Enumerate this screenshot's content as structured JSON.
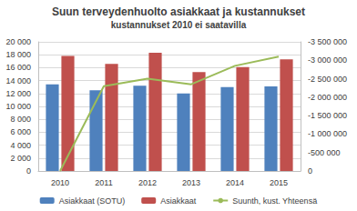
{
  "chart_data": {
    "type": "bar",
    "title": "Suun terveydenhuolto asiakkaat ja kustannukset",
    "subtitle": "kustannukset 2010 ei saatavilla",
    "categories": [
      "2010",
      "2011",
      "2012",
      "2013",
      "2014",
      "2015"
    ],
    "series": [
      {
        "name": "Asiakkaat (SOTU)",
        "type": "bar",
        "color": "#4f81bd",
        "values": [
          13400,
          12500,
          13200,
          12000,
          13000,
          13100
        ]
      },
      {
        "name": "Asiakkaat",
        "type": "bar",
        "color": "#c0504d",
        "values": [
          17800,
          16600,
          18300,
          15300,
          16100,
          17300
        ]
      },
      {
        "name": "Suunth, kust. Yhteensä",
        "type": "line",
        "axis": "y2",
        "color": "#9bbb59",
        "values": [
          0,
          -2300000,
          -2500000,
          -2350000,
          -2850000,
          -3100000
        ]
      }
    ],
    "ylim": [
      0,
      20000
    ],
    "yticks": [
      0,
      {
        "value": 2000,
        "label": "2 000"
      },
      {
        "value": 4000,
        "label": "4 000"
      },
      {
        "value": 6000,
        "label": "6 000"
      },
      {
        "value": 8000,
        "label": "8 000"
      },
      {
        "value": 10000,
        "label": "10 000"
      },
      {
        "value": 12000,
        "label": "12 000"
      },
      {
        "value": 14000,
        "label": "14 000"
      },
      {
        "value": 16000,
        "label": "16 000"
      },
      {
        "value": 18000,
        "label": "18 000"
      },
      {
        "value": 20000,
        "label": "20 000"
      }
    ],
    "y2lim": [
      0,
      -3500000
    ],
    "y2ticks": [
      0,
      {
        "value": -500000,
        "label": "-500 000"
      },
      {
        "value": -1000000,
        "label": "-1 000 000"
      },
      {
        "value": -1500000,
        "label": "-1 500 000"
      },
      {
        "value": -2000000,
        "label": "-2 000 000"
      },
      {
        "value": -2500000,
        "label": "-2 500 000"
      },
      {
        "value": -3000000,
        "label": "-3 000 000"
      },
      {
        "value": -3500000,
        "label": "-3 500 000"
      }
    ],
    "grid": true,
    "legend": "bottom"
  }
}
